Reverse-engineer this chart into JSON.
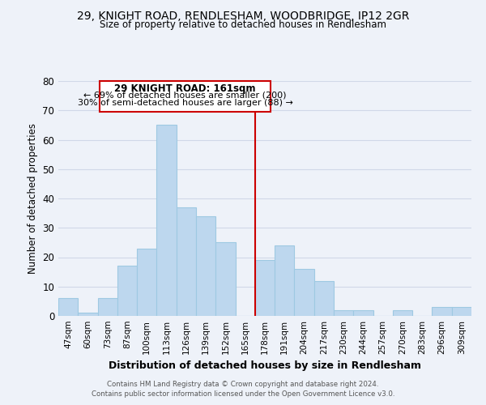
{
  "title": "29, KNIGHT ROAD, RENDLESHAM, WOODBRIDGE, IP12 2GR",
  "subtitle": "Size of property relative to detached houses in Rendlesham",
  "xlabel": "Distribution of detached houses by size in Rendlesham",
  "ylabel": "Number of detached properties",
  "categories": [
    "47sqm",
    "60sqm",
    "73sqm",
    "87sqm",
    "100sqm",
    "113sqm",
    "126sqm",
    "139sqm",
    "152sqm",
    "165sqm",
    "178sqm",
    "191sqm",
    "204sqm",
    "217sqm",
    "230sqm",
    "244sqm",
    "257sqm",
    "270sqm",
    "283sqm",
    "296sqm",
    "309sqm"
  ],
  "values": [
    6,
    1,
    6,
    17,
    23,
    65,
    37,
    34,
    25,
    0,
    19,
    24,
    16,
    12,
    2,
    2,
    0,
    2,
    0,
    3,
    3
  ],
  "bar_color": "#bdd7ee",
  "bar_edge_color": "#9ec9e2",
  "grid_color": "#d0d8e8",
  "vline_x": 9.5,
  "vline_color": "#cc0000",
  "annotation_title": "29 KNIGHT ROAD: 161sqm",
  "annotation_line1": "← 69% of detached houses are smaller (200)",
  "annotation_line2": "30% of semi-detached houses are larger (88) →",
  "annotation_box_color": "#cc0000",
  "ylim": [
    0,
    80
  ],
  "yticks": [
    0,
    10,
    20,
    30,
    40,
    50,
    60,
    70,
    80
  ],
  "footer_line1": "Contains HM Land Registry data © Crown copyright and database right 2024.",
  "footer_line2": "Contains public sector information licensed under the Open Government Licence v3.0.",
  "bg_color": "#eef2f9"
}
